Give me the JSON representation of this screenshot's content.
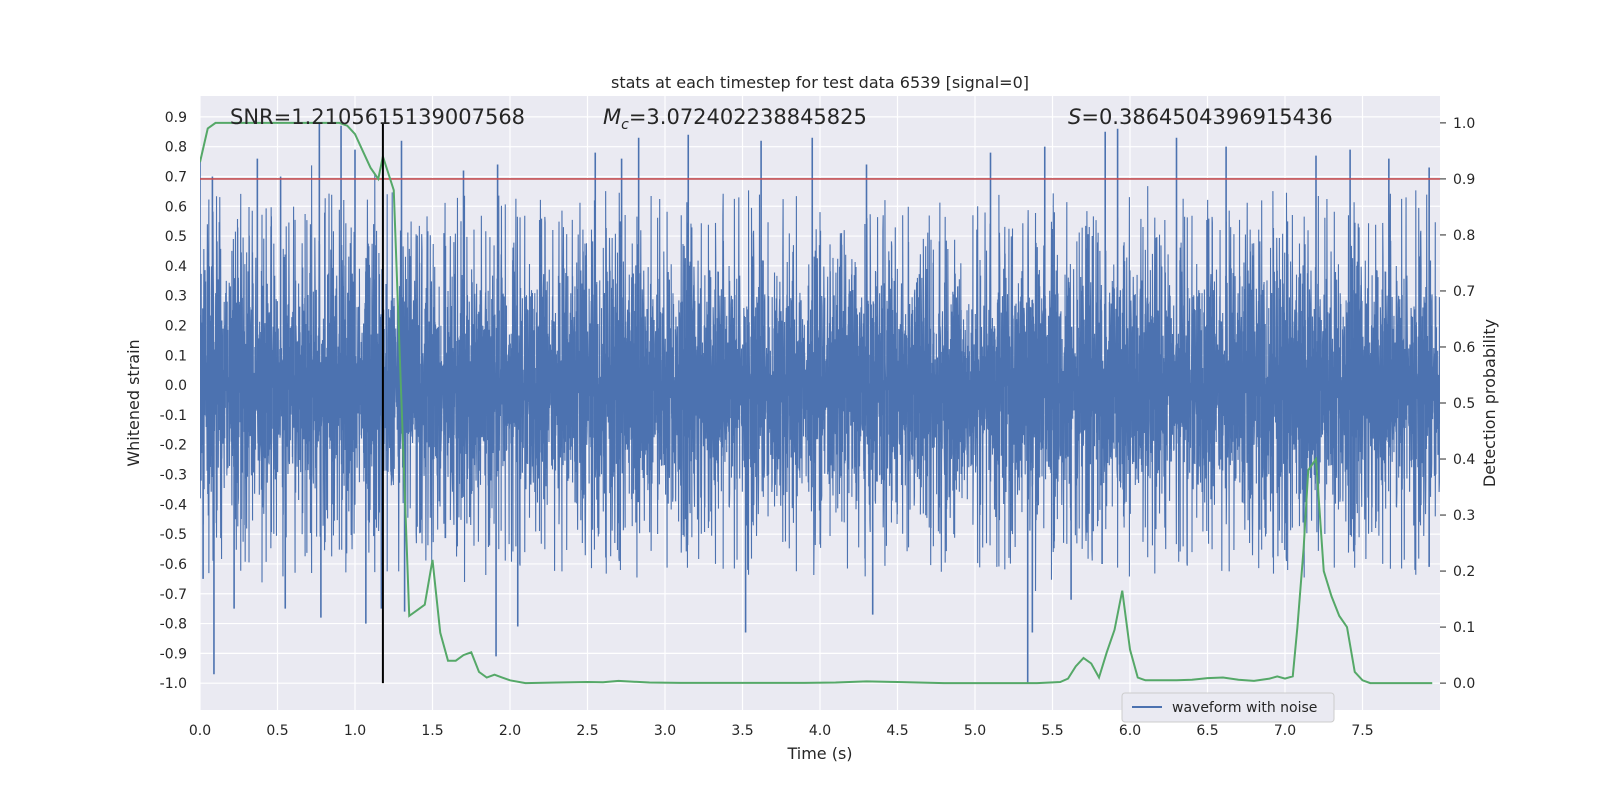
{
  "chart_data": {
    "type": "line",
    "title": "stats at each timestep for test data 6539 [signal=0]",
    "xlabel": "Time (s)",
    "ylabel_left": "Whitened strain",
    "ylabel_right": "Detection probability",
    "xlim": [
      0,
      8.0
    ],
    "ylim_left": [
      -1.09,
      0.97
    ],
    "ylim_right": [
      -0.048,
      1.048
    ],
    "x_ticks": [
      "0.0",
      "0.5",
      "1.0",
      "1.5",
      "2.0",
      "2.5",
      "3.0",
      "3.5",
      "4.0",
      "4.5",
      "5.0",
      "5.5",
      "6.0",
      "6.5",
      "7.0",
      "7.5"
    ],
    "y_ticks_left": [
      "0.9",
      "0.8",
      "0.7",
      "0.6",
      "0.5",
      "0.4",
      "0.3",
      "0.2",
      "0.1",
      "0.0",
      "-0.1",
      "-0.2",
      "-0.3",
      "-0.4",
      "-0.5",
      "-0.6",
      "-0.7",
      "-0.8",
      "-0.9",
      "-1.0"
    ],
    "y_ticks_right": [
      "1.0",
      "0.9",
      "0.8",
      "0.7",
      "0.6",
      "0.5",
      "0.4",
      "0.3",
      "0.2",
      "0.1",
      "0.0"
    ],
    "grid": true,
    "legend_placement": "lower-right",
    "legend": [
      "waveform with noise"
    ],
    "annotations": {
      "snr": "SNR=1.2105615139007568",
      "mc_symbol": "M",
      "mc_sub": "c",
      "mc_value": "=3.072402238845825",
      "s_symbol": "S",
      "s_value": "=0.3864504396915436"
    },
    "threshold": {
      "value": 0.9,
      "axis": "right",
      "color": "#c44e52"
    },
    "vertical_marker": {
      "x": 1.18,
      "color": "#000000"
    },
    "series": [
      {
        "name": "waveform with noise",
        "axis": "left",
        "color": "#4c72b0",
        "description": "dense noisy whitened strain, mostly within [-0.5, 0.5], peaks to about 0.88 and dips to about -1.0",
        "band": [
          -0.5,
          0.5
        ],
        "peaks": [
          {
            "x": 0.0,
            "y": 0.75
          },
          {
            "x": 0.08,
            "y": 0.7
          },
          {
            "x": 0.37,
            "y": 0.76
          },
          {
            "x": 0.52,
            "y": 0.7
          },
          {
            "x": 0.77,
            "y": 0.88
          },
          {
            "x": 0.91,
            "y": 0.87
          },
          {
            "x": 1.0,
            "y": 0.79
          },
          {
            "x": 1.3,
            "y": 0.82
          },
          {
            "x": 1.7,
            "y": 0.72
          },
          {
            "x": 1.92,
            "y": 0.74
          },
          {
            "x": 2.55,
            "y": 0.78
          },
          {
            "x": 2.72,
            "y": 0.76
          },
          {
            "x": 2.83,
            "y": 0.83
          },
          {
            "x": 3.15,
            "y": 0.84
          },
          {
            "x": 3.62,
            "y": 0.82
          },
          {
            "x": 3.95,
            "y": 0.83
          },
          {
            "x": 4.3,
            "y": 0.74
          },
          {
            "x": 5.1,
            "y": 0.78
          },
          {
            "x": 5.45,
            "y": 0.8
          },
          {
            "x": 5.84,
            "y": 0.85
          },
          {
            "x": 5.92,
            "y": 0.86
          },
          {
            "x": 6.3,
            "y": 0.83
          },
          {
            "x": 6.62,
            "y": 0.8
          },
          {
            "x": 7.2,
            "y": 0.77
          },
          {
            "x": 7.42,
            "y": 0.79
          },
          {
            "x": 7.67,
            "y": 0.76
          },
          {
            "x": 7.93,
            "y": 0.73
          }
        ],
        "dips": [
          {
            "x": 0.02,
            "y": -0.65
          },
          {
            "x": 0.09,
            "y": -0.97
          },
          {
            "x": 0.22,
            "y": -0.75
          },
          {
            "x": 0.55,
            "y": -0.75
          },
          {
            "x": 0.78,
            "y": -0.78
          },
          {
            "x": 1.07,
            "y": -0.8
          },
          {
            "x": 1.17,
            "y": -0.75
          },
          {
            "x": 1.32,
            "y": -0.76
          },
          {
            "x": 1.91,
            "y": -0.91
          },
          {
            "x": 2.05,
            "y": -0.81
          },
          {
            "x": 3.52,
            "y": -0.83
          },
          {
            "x": 4.34,
            "y": -0.77
          },
          {
            "x": 5.34,
            "y": -1.0
          },
          {
            "x": 5.37,
            "y": -0.83
          },
          {
            "x": 5.62,
            "y": -0.72
          },
          {
            "x": 5.82,
            "y": -0.6
          },
          {
            "x": 7.93,
            "y": -0.61
          }
        ]
      },
      {
        "name": "",
        "axis": "right",
        "color": "#55a868",
        "x": [
          0.0,
          0.05,
          0.1,
          0.2,
          0.4,
          0.6,
          0.8,
          0.9,
          0.95,
          1.0,
          1.05,
          1.1,
          1.15,
          1.18,
          1.25,
          1.35,
          1.4,
          1.45,
          1.5,
          1.55,
          1.6,
          1.65,
          1.7,
          1.75,
          1.8,
          1.85,
          1.9,
          1.95,
          2.0,
          2.1,
          2.3,
          2.5,
          2.6,
          2.7,
          2.9,
          3.1,
          3.5,
          3.9,
          4.1,
          4.3,
          4.5,
          4.8,
          5.0,
          5.2,
          5.4,
          5.55,
          5.6,
          5.65,
          5.7,
          5.75,
          5.8,
          5.85,
          5.9,
          5.95,
          6.0,
          6.05,
          6.1,
          6.3,
          6.4,
          6.5,
          6.6,
          6.7,
          6.8,
          6.9,
          6.95,
          7.0,
          7.05,
          7.08,
          7.12,
          7.15,
          7.2,
          7.25,
          7.3,
          7.35,
          7.4,
          7.45,
          7.5,
          7.55,
          7.65,
          7.95
        ],
        "values": [
          0.93,
          0.99,
          1.0,
          1.0,
          1.0,
          1.0,
          1.0,
          1.0,
          0.995,
          0.98,
          0.95,
          0.92,
          0.9,
          0.94,
          0.88,
          0.12,
          0.13,
          0.14,
          0.22,
          0.09,
          0.04,
          0.04,
          0.05,
          0.055,
          0.02,
          0.01,
          0.015,
          0.01,
          0.005,
          0.0,
          0.001,
          0.002,
          0.0015,
          0.004,
          0.001,
          0.0005,
          0.0005,
          0.0005,
          0.001,
          0.003,
          0.002,
          0.0,
          0.0,
          0.0,
          0.0,
          0.002,
          0.008,
          0.03,
          0.045,
          0.035,
          0.01,
          0.055,
          0.095,
          0.165,
          0.06,
          0.01,
          0.005,
          0.005,
          0.006,
          0.009,
          0.01,
          0.006,
          0.004,
          0.008,
          0.012,
          0.008,
          0.012,
          0.1,
          0.24,
          0.38,
          0.4,
          0.2,
          0.155,
          0.12,
          0.1,
          0.02,
          0.005,
          0.0,
          0.0,
          0.0
        ]
      }
    ]
  }
}
